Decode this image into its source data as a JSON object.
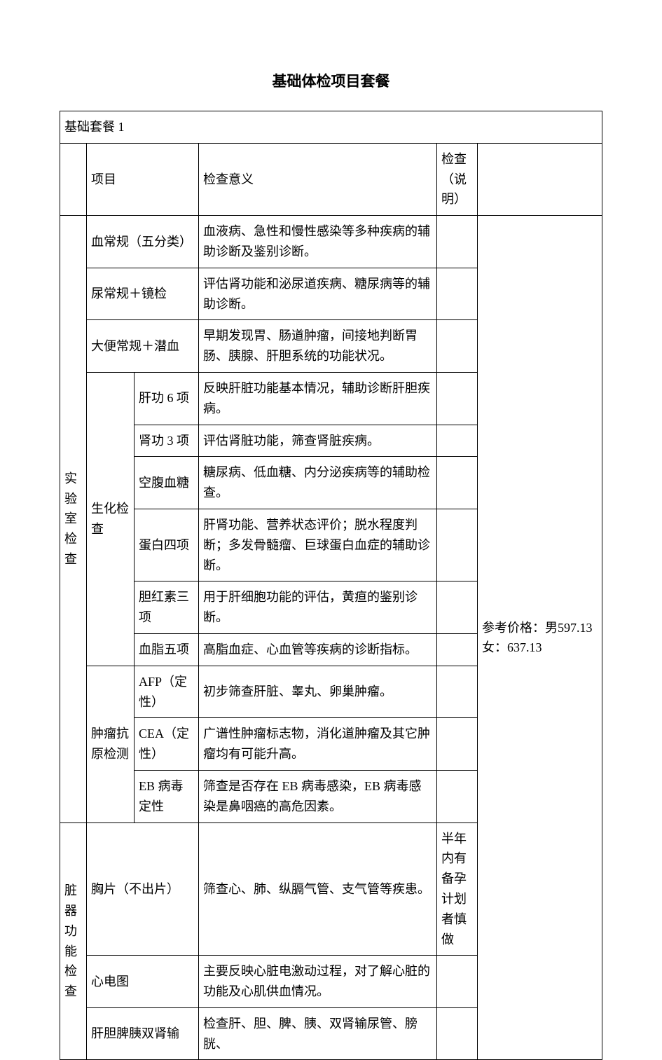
{
  "title": "基础体检项目套餐",
  "package_name": "基础套餐 1",
  "header": {
    "item": "项目",
    "meaning": "检查意义",
    "note": "检查（说明）"
  },
  "price_text": "参考价格：男597.13　　女：637.13",
  "cat_lab": "实验室检查",
  "cat_organ": "脏器功能检查",
  "lab_rows": [
    {
      "sub_span": 2,
      "item": "血常规（五分类）",
      "meaning": "血液病、急性和慢性感染等多种疾病的辅助诊断及鉴别诊断。",
      "note": ""
    },
    {
      "sub_span": 2,
      "item": "尿常规＋镜检",
      "meaning": "评估肾功能和泌尿道疾病、糖尿病等的辅助诊断。",
      "note": ""
    },
    {
      "sub_span": 2,
      "item": "大便常规＋潜血",
      "meaning": "早期发现胃、肠道肿瘤，间接地判断胃肠、胰腺、肝胆系统的功能状况。",
      "note": ""
    }
  ],
  "biochem_label": "生化检查",
  "biochem": [
    {
      "item": "肝功 6 项",
      "meaning": "反映肝脏功能基本情况，辅助诊断肝胆疾病。",
      "note": ""
    },
    {
      "item": "肾功 3 项",
      "meaning": "评估肾脏功能，筛查肾脏疾病。",
      "note": ""
    },
    {
      "item": "空腹血糖",
      "meaning": "糖尿病、低血糖、内分泌疾病等的辅助检查。",
      "note": ""
    },
    {
      "item": "蛋白四项",
      "meaning": "肝肾功能、营养状态评价；脱水程度判断；多发骨髓瘤、巨球蛋白血症的辅助诊断。",
      "note": ""
    },
    {
      "item": "胆红素三项",
      "meaning": "用于肝细胞功能的评估，黄疸的鉴别诊断。",
      "note": ""
    },
    {
      "item": "血脂五项",
      "meaning": "高脂血症、心血管等疾病的诊断指标。",
      "note": ""
    }
  ],
  "tumor_label": "肿瘤抗原检测",
  "tumor": [
    {
      "item": "AFP（定性）",
      "meaning": "初步筛查肝脏、睾丸、卵巢肿瘤。",
      "note": ""
    },
    {
      "item": "CEA（定性）",
      "meaning": "广谱性肿瘤标志物，消化道肿瘤及其它肿瘤均有可能升高。",
      "note": ""
    },
    {
      "item": "EB 病毒定性",
      "meaning": "筛查是否存在 EB 病毒感染，EB 病毒感染是鼻咽癌的高危因素。",
      "note": ""
    }
  ],
  "organ": [
    {
      "sub_span": 2,
      "item": "胸片（不出片）",
      "meaning": "筛查心、肺、纵膈气管、支气管等疾患。",
      "note": "半年内有备孕计划者慎做"
    },
    {
      "sub_span": 2,
      "item": "心电图",
      "meaning": "主要反映心脏电激动过程，对了解心脏的功能及心肌供血情况。",
      "note": ""
    },
    {
      "sub_span": 2,
      "item": "肝胆脾胰双肾输",
      "meaning": "检查肝、胆、脾、胰、双肾输尿管、膀胱、",
      "note": ""
    }
  ]
}
